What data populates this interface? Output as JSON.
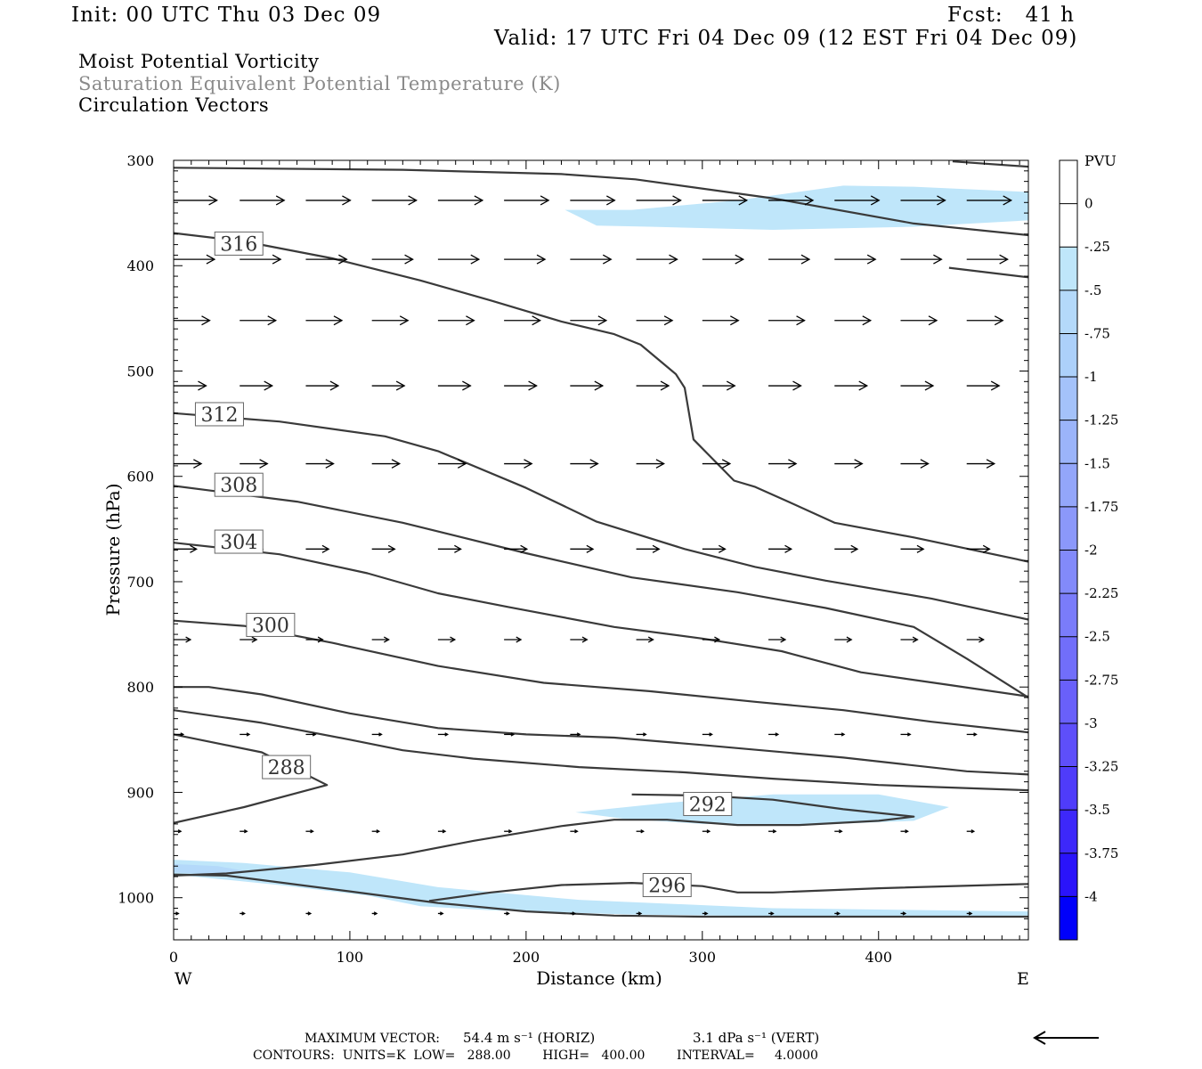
{
  "header": {
    "init": "Init: 00 UTC Thu 03 Dec 09",
    "fcst": "Fcst:   41 h",
    "valid": "Valid: 17 UTC Fri 04 Dec 09 (12 EST Fri 04 Dec 09)"
  },
  "fields": {
    "line1": "Moist Potential Vorticity",
    "line2": "Saturation Equivalent Potential Temperature (K)",
    "line3": "Circulation Vectors"
  },
  "footer": {
    "vector_label": "MAXIMUM VECTOR:",
    "vector_horiz": "54.4 m s⁻¹ (HORIZ)",
    "vector_vert": "3.1 dPa s⁻¹ (VERT)",
    "contours": "CONTOURS:  UNITS=K  LOW=   288.00        HIGH=   400.00        INTERVAL=     4.0000"
  },
  "chart_data": {
    "type": "cross-section",
    "xlabel": "Distance (km)",
    "ylabel": "Pressure (hPa)",
    "xlim": [
      0,
      485
    ],
    "ylim": [
      1040,
      300
    ],
    "x_ticks": [
      0,
      100,
      200,
      300,
      400
    ],
    "y_ticks": [
      300,
      400,
      500,
      600,
      700,
      800,
      900,
      1000
    ],
    "x_end_labels": {
      "left": "W",
      "right": "E"
    },
    "colorbar": {
      "title": "PVU",
      "levels": [
        "0",
        "-.25",
        "-.5",
        "-.75",
        "-1",
        "-1.25",
        "-1.5",
        "-1.75",
        "-2",
        "-2.25",
        "-2.5",
        "-2.75",
        "-3",
        "-3.25",
        "-3.5",
        "-3.75",
        "-4"
      ],
      "colors": [
        "#ffffff",
        "#ffffff",
        "#bfe6fa",
        "#b4d9fa",
        "#acd0fa",
        "#a4c2fa",
        "#9bb4fa",
        "#93a6fa",
        "#8b98fa",
        "#828afa",
        "#7a7cfa",
        "#716efa",
        "#6960fa",
        "#5e4ffa",
        "#4f3cfa",
        "#3d28fa",
        "#2a14fa",
        "#0000fa"
      ]
    },
    "pv_regions": [
      {
        "level": "-.25",
        "points": [
          [
            222,
            347
          ],
          [
            260,
            347
          ],
          [
            320,
            338
          ],
          [
            380,
            324
          ],
          [
            420,
            325
          ],
          [
            485,
            330
          ],
          [
            485,
            357
          ],
          [
            420,
            363
          ],
          [
            340,
            366
          ],
          [
            270,
            363
          ],
          [
            240,
            362
          ]
        ]
      },
      {
        "level": "-.25",
        "points": [
          [
            228,
            919
          ],
          [
            280,
            910
          ],
          [
            340,
            902
          ],
          [
            400,
            902
          ],
          [
            440,
            914
          ],
          [
            420,
            927
          ],
          [
            360,
            931
          ],
          [
            300,
            930
          ],
          [
            255,
            925
          ]
        ]
      },
      {
        "level": "-.25",
        "points": [
          [
            0,
            964
          ],
          [
            40,
            967
          ],
          [
            100,
            976
          ],
          [
            150,
            990
          ],
          [
            230,
            1002
          ],
          [
            340,
            1010
          ],
          [
            485,
            1013
          ],
          [
            485,
            1017
          ],
          [
            360,
            1018
          ],
          [
            260,
            1016
          ],
          [
            180,
            1012
          ],
          [
            140,
            1008
          ],
          [
            110,
            998
          ],
          [
            60,
            988
          ],
          [
            0,
            978
          ]
        ]
      },
      {
        "level": "-.5",
        "points": [
          [
            0,
            968
          ],
          [
            25,
            970
          ],
          [
            45,
            976
          ],
          [
            25,
            978
          ],
          [
            0,
            976
          ]
        ]
      }
    ],
    "theta_contours": [
      {
        "label": "",
        "points": [
          [
            0,
            307
          ],
          [
            130,
            309
          ],
          [
            220,
            313
          ],
          [
            262,
            318
          ],
          [
            340,
            336
          ],
          [
            420,
            360
          ],
          [
            485,
            371
          ]
        ]
      },
      {
        "label": "",
        "points": [
          [
            442,
            301
          ],
          [
            485,
            306
          ]
        ]
      },
      {
        "label": "316",
        "label_at": [
          37,
          379
        ],
        "points": [
          [
            0,
            369
          ],
          [
            40,
            377
          ],
          [
            90,
            393
          ],
          [
            140,
            414
          ],
          [
            180,
            433
          ],
          [
            220,
            453
          ],
          [
            250,
            465
          ],
          [
            265,
            475
          ],
          [
            285,
            503
          ],
          [
            290,
            516
          ],
          [
            295,
            565
          ],
          [
            318,
            604
          ],
          [
            330,
            610
          ],
          [
            350,
            625
          ],
          [
            375,
            644
          ],
          [
            420,
            658
          ],
          [
            485,
            681
          ]
        ]
      },
      {
        "label": "",
        "points": [
          [
            440,
            402
          ],
          [
            485,
            411
          ]
        ]
      },
      {
        "label": "312",
        "label_at": [
          26,
          541
        ],
        "points": [
          [
            0,
            540
          ],
          [
            60,
            548
          ],
          [
            120,
            562
          ],
          [
            150,
            576
          ],
          [
            200,
            611
          ],
          [
            240,
            643
          ],
          [
            290,
            669
          ],
          [
            330,
            686
          ],
          [
            370,
            699
          ],
          [
            430,
            716
          ],
          [
            485,
            736
          ]
        ]
      },
      {
        "label": "308",
        "label_at": [
          37,
          608
        ],
        "points": [
          [
            0,
            609
          ],
          [
            70,
            624
          ],
          [
            130,
            644
          ],
          [
            200,
            673
          ],
          [
            260,
            696
          ],
          [
            320,
            710
          ],
          [
            350,
            719
          ],
          [
            370,
            725
          ],
          [
            420,
            743
          ],
          [
            450,
            773
          ],
          [
            485,
            810
          ]
        ]
      },
      {
        "label": "304",
        "label_at": [
          37,
          662
        ],
        "points": [
          [
            0,
            663
          ],
          [
            60,
            674
          ],
          [
            110,
            692
          ],
          [
            150,
            711
          ],
          [
            190,
            724
          ],
          [
            250,
            743
          ],
          [
            300,
            754
          ],
          [
            345,
            766
          ],
          [
            390,
            786
          ],
          [
            440,
            798
          ],
          [
            485,
            809
          ]
        ]
      },
      {
        "label": "300",
        "label_at": [
          55,
          741
        ],
        "points": [
          [
            0,
            737
          ],
          [
            40,
            742
          ],
          [
            90,
            758
          ],
          [
            150,
            780
          ],
          [
            210,
            796
          ],
          [
            270,
            804
          ],
          [
            330,
            814
          ],
          [
            380,
            822
          ],
          [
            430,
            833
          ],
          [
            485,
            843
          ]
        ]
      },
      {
        "label": "",
        "points": [
          [
            0,
            800
          ],
          [
            20,
            800
          ],
          [
            50,
            807
          ],
          [
            100,
            825
          ],
          [
            150,
            839
          ],
          [
            200,
            845
          ],
          [
            250,
            848
          ],
          [
            300,
            855
          ],
          [
            380,
            867
          ],
          [
            450,
            880
          ],
          [
            485,
            883
          ]
        ]
      },
      {
        "label": "",
        "points": [
          [
            0,
            822
          ],
          [
            50,
            834
          ],
          [
            100,
            850
          ],
          [
            130,
            860
          ],
          [
            170,
            868
          ],
          [
            230,
            876
          ],
          [
            290,
            881
          ],
          [
            340,
            887
          ],
          [
            400,
            893
          ],
          [
            485,
            898
          ]
        ]
      },
      {
        "label": "288",
        "label_at": [
          64,
          876
        ],
        "points": [
          [
            0,
            845
          ],
          [
            50,
            862
          ],
          [
            87,
            893
          ],
          [
            40,
            914
          ],
          [
            0,
            929
          ]
        ]
      },
      {
        "label": "292",
        "label_at": [
          303,
          911
        ],
        "points": [
          [
            0,
            979
          ],
          [
            30,
            977
          ],
          [
            80,
            969
          ],
          [
            130,
            959
          ],
          [
            170,
            946
          ],
          [
            220,
            932
          ],
          [
            250,
            926
          ],
          [
            280,
            926
          ],
          [
            320,
            931
          ],
          [
            355,
            931
          ],
          [
            400,
            927
          ],
          [
            420,
            923
          ],
          [
            380,
            916
          ],
          [
            340,
            907
          ],
          [
            300,
            903
          ],
          [
            260,
            902
          ]
        ]
      },
      {
        "label": "296",
        "label_at": [
          280,
          988
        ],
        "points": [
          [
            145,
            1003
          ],
          [
            180,
            995
          ],
          [
            220,
            988
          ],
          [
            260,
            986
          ],
          [
            300,
            989
          ],
          [
            320,
            995
          ],
          [
            340,
            995
          ],
          [
            400,
            991
          ],
          [
            485,
            987
          ]
        ]
      },
      {
        "label": "",
        "points": [
          [
            0,
            978
          ],
          [
            30,
            979
          ],
          [
            100,
            994
          ],
          [
            150,
            1005
          ],
          [
            200,
            1013
          ],
          [
            250,
            1017
          ],
          [
            300,
            1018
          ],
          [
            485,
            1018
          ]
        ]
      }
    ],
    "vector_rows": [
      {
        "p": 338,
        "u": [
          36,
          37,
          37,
          37,
          37,
          37,
          37,
          37,
          37,
          37,
          37,
          37,
          37,
          37,
          37,
          37
        ],
        "w": [
          0,
          0,
          0,
          0,
          0,
          0,
          0,
          0,
          0,
          0,
          0,
          0,
          0,
          0,
          0,
          0
        ]
      },
      {
        "p": 394,
        "u": [
          34,
          34,
          34,
          34,
          34,
          34,
          34,
          34,
          34,
          34,
          34,
          34,
          34,
          34,
          34,
          34
        ],
        "w": [
          0,
          0,
          0,
          0,
          0,
          0,
          0,
          0,
          0,
          0,
          0,
          0,
          0,
          0,
          0,
          0
        ]
      },
      {
        "p": 452,
        "u": [
          30,
          30,
          30,
          30,
          30,
          30,
          30,
          30,
          30,
          30,
          30,
          30,
          30,
          30,
          30,
          30
        ],
        "w": [
          0,
          0,
          0,
          0,
          0,
          0,
          0,
          0,
          0,
          0,
          0,
          0,
          0,
          0,
          0,
          0
        ]
      },
      {
        "p": 514,
        "u": [
          27,
          27,
          27,
          27,
          27,
          27,
          27,
          27,
          27,
          27,
          27,
          27,
          27,
          27,
          27,
          27
        ],
        "w": [
          0,
          0,
          0,
          0,
          0,
          0,
          0,
          0,
          0,
          0,
          0,
          0,
          0,
          0,
          0,
          0
        ]
      },
      {
        "p": 588,
        "u": [
          23,
          23,
          23,
          23,
          23,
          23,
          23,
          23,
          23,
          23,
          23,
          23,
          23,
          23,
          23,
          23
        ],
        "w": [
          0,
          0,
          0,
          0,
          0,
          0,
          0,
          0,
          0,
          0,
          0,
          0,
          0,
          0,
          0,
          0
        ]
      },
      {
        "p": 669,
        "u": [
          19,
          19,
          19,
          19,
          19,
          19,
          19,
          19,
          19,
          19,
          19,
          19,
          19,
          19,
          19,
          19
        ],
        "w": [
          0,
          0,
          0,
          0,
          0,
          0,
          0,
          0,
          0,
          0,
          0,
          0,
          0,
          0,
          0,
          0
        ]
      },
      {
        "p": 755,
        "u": [
          14,
          14,
          14,
          14,
          14,
          14,
          14,
          14,
          14,
          14,
          14,
          14,
          14,
          14,
          14,
          14
        ],
        "w": [
          0,
          0,
          0,
          0,
          0,
          0,
          0,
          0,
          0,
          0,
          0,
          0,
          0,
          0,
          0,
          0
        ]
      },
      {
        "p": 845,
        "u": [
          8,
          8,
          8,
          8,
          8,
          8,
          8,
          8,
          8,
          8,
          8,
          8,
          8,
          8,
          8,
          8
        ],
        "w": [
          0,
          0,
          0,
          0,
          0,
          0,
          0,
          0,
          0,
          0,
          0,
          0,
          0,
          0,
          0,
          0
        ]
      },
      {
        "p": 937,
        "u": [
          6,
          6,
          6,
          6,
          6,
          6,
          6,
          6,
          6,
          6,
          6,
          6,
          6,
          6,
          6,
          6
        ],
        "w": [
          0,
          0,
          0,
          0,
          0,
          0,
          0,
          0,
          0,
          0,
          0,
          0,
          0,
          0,
          0,
          0
        ]
      },
      {
        "p": 1015,
        "u": [
          4,
          4,
          4,
          4,
          4,
          4,
          4,
          4,
          4,
          4,
          4,
          4,
          4,
          4,
          4,
          4
        ],
        "w": [
          0,
          0,
          0,
          0,
          0,
          0,
          0,
          0,
          0,
          0,
          0,
          0,
          0,
          0,
          0,
          0
        ]
      }
    ]
  }
}
